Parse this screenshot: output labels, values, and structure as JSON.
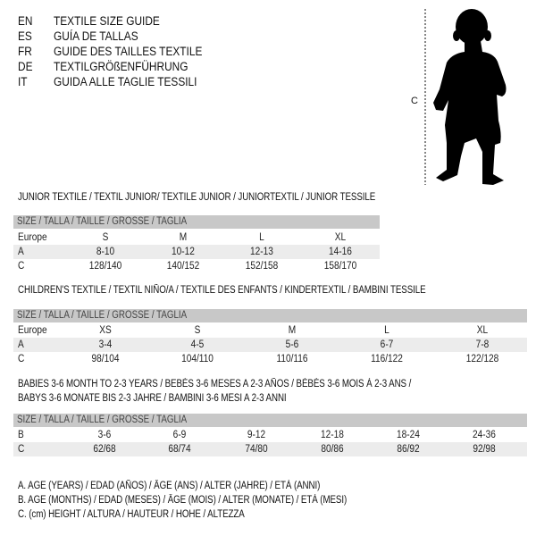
{
  "languages": [
    {
      "code": "EN",
      "title": "TEXTILE SIZE GUIDE"
    },
    {
      "code": "ES",
      "title": "GUÍA DE TALLAS"
    },
    {
      "code": "FR",
      "title": "GUIDE DES TAILLES TEXTILE"
    },
    {
      "code": "DE",
      "title": "TEXTILGRÖßENFÜHRUNG"
    },
    {
      "code": "IT",
      "title": "GUIDA ALLE TAGLIE TESSILI"
    }
  ],
  "figure": {
    "measure_label": "C",
    "icon": "child-silhouette-icon"
  },
  "size_header": "SIZE / TALLA / TAILLE / GRÖSSE / TAGLIA",
  "junior": {
    "heading": "JUNIOR TEXTILE / TEXTIL JUNIOR/ TEXTILE JUNIOR / JUNIORTEXTIL / JUNIOR TESSILE",
    "rows": [
      {
        "label": "Europe",
        "values": [
          "S",
          "M",
          "L",
          "XL"
        ]
      },
      {
        "label": "A",
        "values": [
          "8-10",
          "10-12",
          "12-13",
          "14-16"
        ]
      },
      {
        "label": "C",
        "values": [
          "128/140",
          "140/152",
          "152/158",
          "158/170"
        ]
      }
    ]
  },
  "children": {
    "heading": "CHILDREN'S TEXTILE / TEXTIL NIÑO/A / TEXTILE DES ENFANTS / KINDERTEXTIL / BAMBINI TESSILE",
    "rows": [
      {
        "label": "Europe",
        "values": [
          "XS",
          "S",
          "M",
          "L",
          "XL"
        ]
      },
      {
        "label": "A",
        "values": [
          "3-4",
          "4-5",
          "5-6",
          "6-7",
          "7-8"
        ]
      },
      {
        "label": "C",
        "values": [
          "98/104",
          "104/110",
          "110/116",
          "116/122",
          "122/128"
        ]
      }
    ]
  },
  "babies": {
    "heading_line1": "BABIES 3-6 MONTH TO 2-3 YEARS / BEBÉS 3-6 MESES A 2-3 AÑOS / BÉBÉS 3-6 MOIS À 2-3 ANS /",
    "heading_line2": "BABYS 3-6 MONATE BIS 2-3 JAHRE / BAMBINI 3-6 MESI A 2-3 ANNI",
    "rows": [
      {
        "label": "B",
        "values": [
          "3-6",
          "6-9",
          "9-12",
          "12-18",
          "18-24",
          "24-36"
        ]
      },
      {
        "label": "C",
        "values": [
          "62/68",
          "68/74",
          "74/80",
          "80/86",
          "86/92",
          "92/98"
        ]
      }
    ]
  },
  "legend": [
    "A. AGE (YEARS) / EDAD (AÑOS) / ÂGE (ANS) / ALTER (JAHRE) / ETÀ (ANNI)",
    "B. AGE (MONTHS) / EDAD (MESES) / ÂGE (MOIS) / ALTER (MONATE) / ETÀ (MESI)",
    "C. (cm) HEIGHT / ALTURA / HAUTEUR / HÖHE / ALTEZZA"
  ]
}
